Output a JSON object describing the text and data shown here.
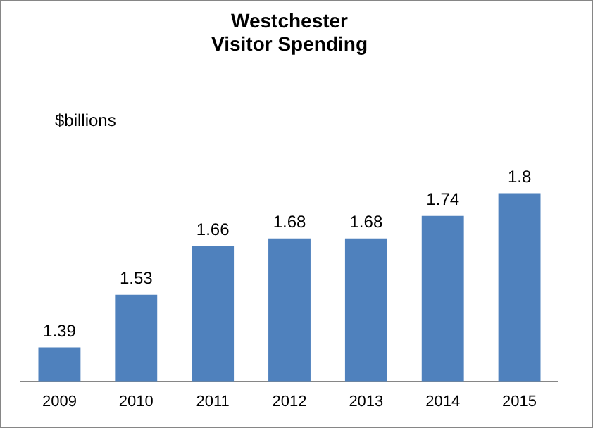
{
  "chart_data": {
    "type": "bar",
    "title": "Westchester\nVisitor Spending",
    "ylabel": "$billions",
    "categories": [
      "2009",
      "2010",
      "2011",
      "2012",
      "2013",
      "2014",
      "2015"
    ],
    "values": [
      1.39,
      1.53,
      1.66,
      1.68,
      1.68,
      1.74,
      1.8
    ],
    "color": "#4f81bd",
    "data_labels": true,
    "grid": false,
    "legend": false
  }
}
